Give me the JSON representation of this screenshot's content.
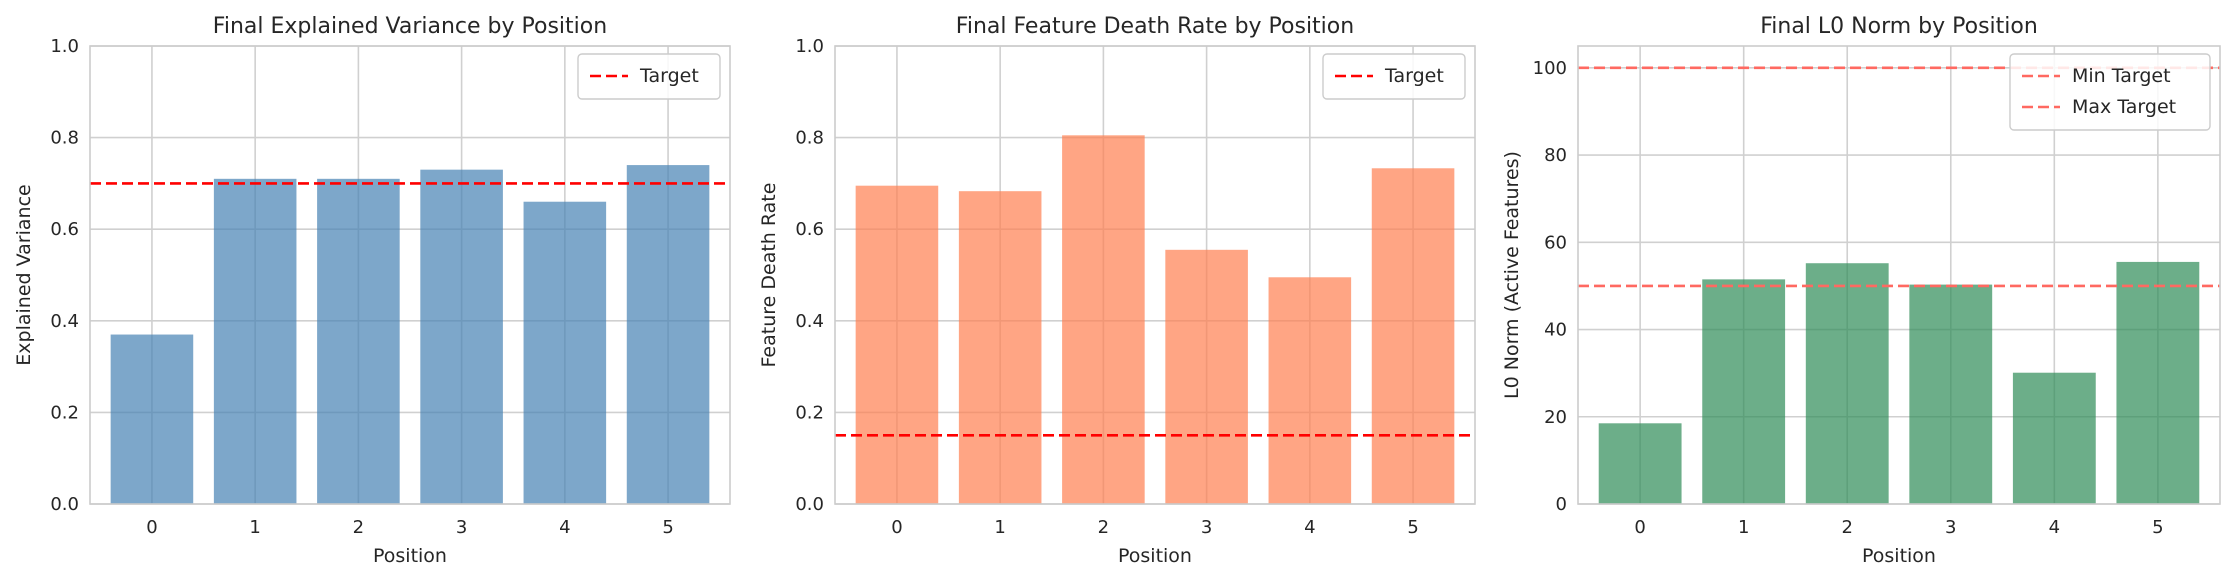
{
  "chart_data": [
    {
      "type": "bar",
      "title": "Final Explained Variance by Position",
      "xlabel": "Position",
      "ylabel": "Explained Variance",
      "categories": [
        "0",
        "1",
        "2",
        "3",
        "4",
        "5"
      ],
      "values": [
        0.37,
        0.71,
        0.71,
        0.73,
        0.66,
        0.74
      ],
      "ylim": [
        0,
        1.0
      ],
      "yticks": [
        "0.0",
        "0.2",
        "0.4",
        "0.6",
        "0.8",
        "1.0"
      ],
      "yticks_values": [
        0,
        0.2,
        0.4,
        0.6,
        0.8,
        1.0
      ],
      "bar_color": "#4682b4",
      "grid": true,
      "reference_lines": [
        {
          "name": "Target",
          "value": 0.7,
          "color": "#ff0000",
          "style": "dashed"
        }
      ],
      "legend": {
        "placement": "top-right",
        "entries": [
          "Target"
        ]
      }
    },
    {
      "type": "bar",
      "title": "Final Feature Death Rate by Position",
      "xlabel": "Position",
      "ylabel": "Feature Death Rate",
      "categories": [
        "0",
        "1",
        "2",
        "3",
        "4",
        "5"
      ],
      "values": [
        0.695,
        0.683,
        0.805,
        0.555,
        0.495,
        0.733
      ],
      "ylim": [
        0,
        1.0
      ],
      "yticks": [
        "0.0",
        "0.2",
        "0.4",
        "0.6",
        "0.8",
        "1.0"
      ],
      "yticks_values": [
        0,
        0.2,
        0.4,
        0.6,
        0.8,
        1.0
      ],
      "bar_color": "#ff7f50",
      "grid": true,
      "reference_lines": [
        {
          "name": "Target",
          "value": 0.15,
          "color": "#ff0000",
          "style": "dashed"
        }
      ],
      "legend": {
        "placement": "top-right",
        "entries": [
          "Target"
        ]
      }
    },
    {
      "type": "bar",
      "title": "Final L0 Norm by Position",
      "xlabel": "Position",
      "ylabel": "L0 Norm (Active Features)",
      "categories": [
        "0",
        "1",
        "2",
        "3",
        "4",
        "5"
      ],
      "values": [
        18.5,
        51.5,
        55.2,
        50.3,
        30.1,
        55.5
      ],
      "ylim": [
        0,
        105
      ],
      "yticks": [
        "0",
        "20",
        "40",
        "60",
        "80",
        "100"
      ],
      "yticks_values": [
        0,
        20,
        40,
        60,
        80,
        100
      ],
      "bar_color": "#2e8b57",
      "grid": true,
      "reference_lines": [
        {
          "name": "Min Target",
          "value": 50,
          "color": "#ff6961",
          "style": "dashed"
        },
        {
          "name": "Max Target",
          "value": 100,
          "color": "#ff6961",
          "style": "dashed"
        }
      ],
      "legend": {
        "placement": "top-right",
        "entries": [
          "Min Target",
          "Max Target"
        ]
      }
    }
  ]
}
